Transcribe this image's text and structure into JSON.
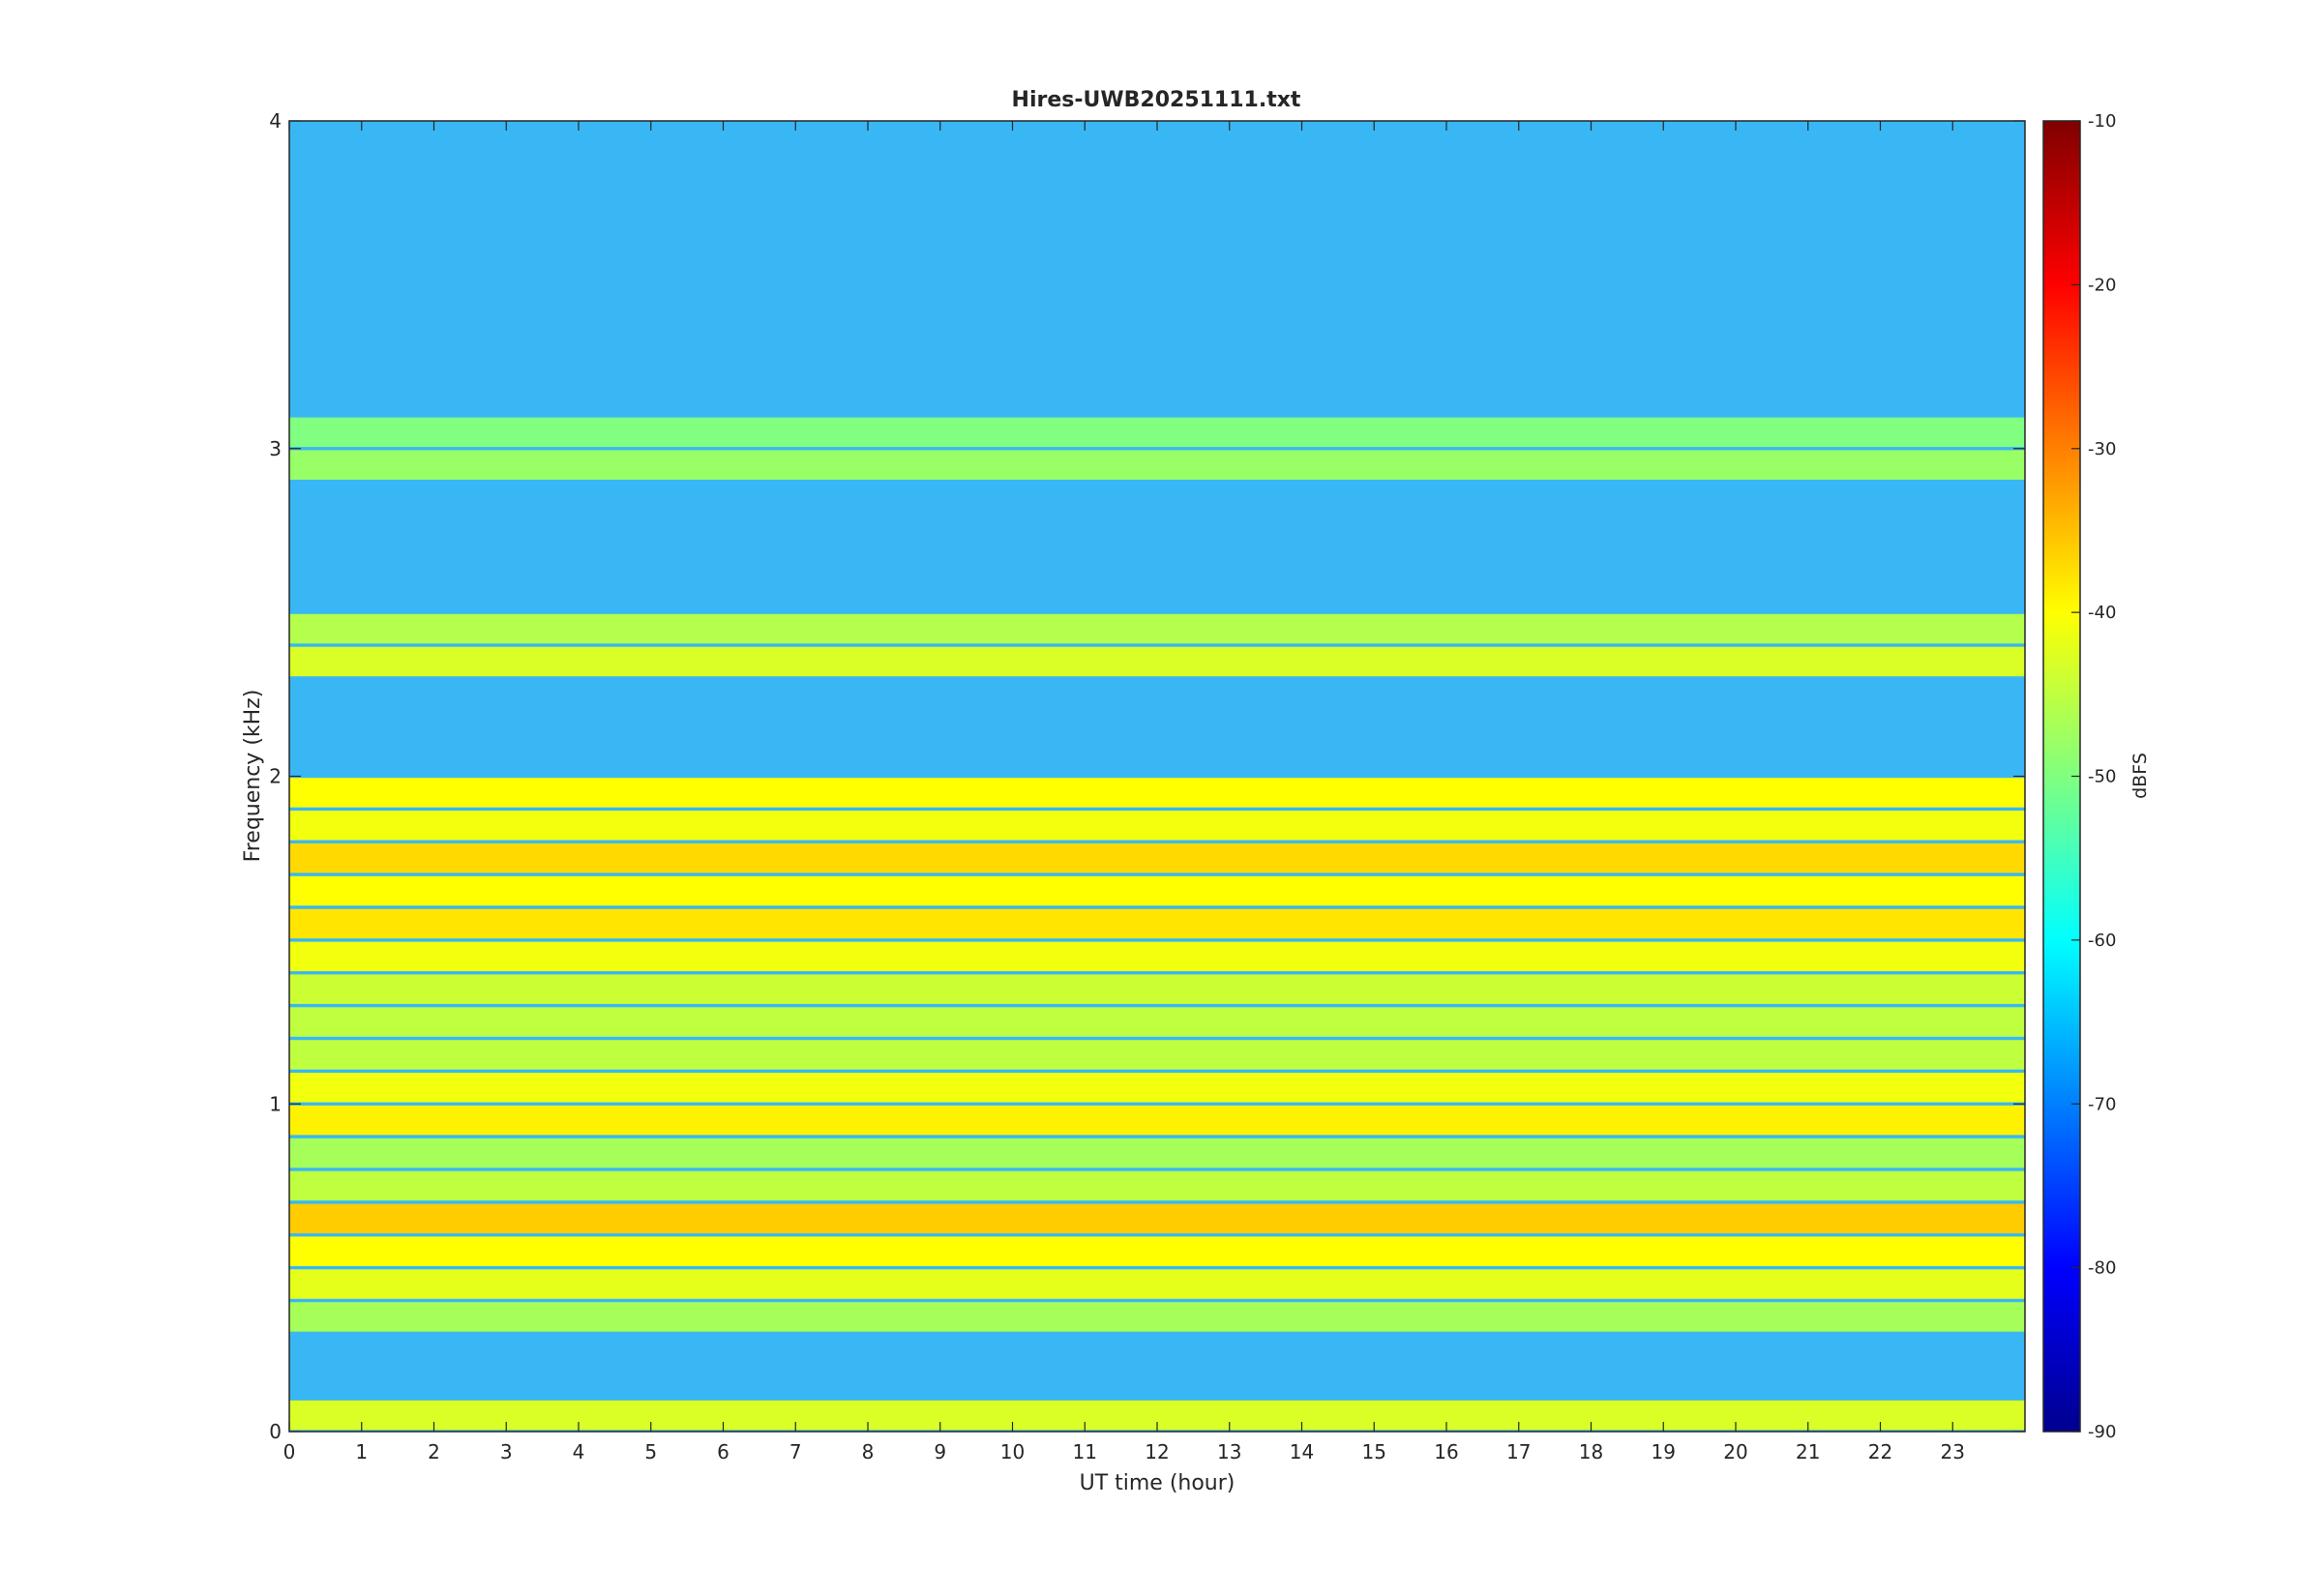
{
  "chart_data": {
    "type": "heatmap",
    "title": "Hires-UWB20251111.txt",
    "xlabel": "UT time (hour)",
    "ylabel": "Frequency (kHz)",
    "colorbar_label": "dBFS",
    "colormap": "jet",
    "xlim": [
      0,
      24
    ],
    "ylim": [
      0,
      4
    ],
    "clim": [
      -90,
      -10
    ],
    "x_ticks": [
      "0",
      "1",
      "2",
      "3",
      "4",
      "5",
      "6",
      "7",
      "8",
      "9",
      "10",
      "11",
      "12",
      "13",
      "14",
      "15",
      "16",
      "17",
      "18",
      "19",
      "20",
      "21",
      "22",
      "23"
    ],
    "y_ticks": [
      "0",
      "1",
      "2",
      "3",
      "4"
    ],
    "colorbar_ticks": [
      "-10",
      "-20",
      "-30",
      "-40",
      "-50",
      "-60",
      "-70",
      "-80",
      "-90"
    ],
    "grid": false,
    "bands": [
      {
        "freq_khz": 0.05,
        "level_dbfs": -43
      },
      {
        "freq_khz": 0.35,
        "level_dbfs": -47
      },
      {
        "freq_khz": 0.45,
        "level_dbfs": -42
      },
      {
        "freq_khz": 0.55,
        "level_dbfs": -40
      },
      {
        "freq_khz": 0.65,
        "level_dbfs": -36
      },
      {
        "freq_khz": 0.75,
        "level_dbfs": -45
      },
      {
        "freq_khz": 0.85,
        "level_dbfs": -47
      },
      {
        "freq_khz": 0.95,
        "level_dbfs": -39
      },
      {
        "freq_khz": 1.05,
        "level_dbfs": -41
      },
      {
        "freq_khz": 1.15,
        "level_dbfs": -45
      },
      {
        "freq_khz": 1.25,
        "level_dbfs": -45
      },
      {
        "freq_khz": 1.35,
        "level_dbfs": -44
      },
      {
        "freq_khz": 1.45,
        "level_dbfs": -41
      },
      {
        "freq_khz": 1.55,
        "level_dbfs": -38
      },
      {
        "freq_khz": 1.65,
        "level_dbfs": -40
      },
      {
        "freq_khz": 1.75,
        "level_dbfs": -37
      },
      {
        "freq_khz": 1.85,
        "level_dbfs": -41
      },
      {
        "freq_khz": 1.95,
        "level_dbfs": -40
      },
      {
        "freq_khz": 2.35,
        "level_dbfs": -43
      },
      {
        "freq_khz": 2.45,
        "level_dbfs": -46
      },
      {
        "freq_khz": 2.95,
        "level_dbfs": -48
      },
      {
        "freq_khz": 3.05,
        "level_dbfs": -50
      }
    ]
  }
}
